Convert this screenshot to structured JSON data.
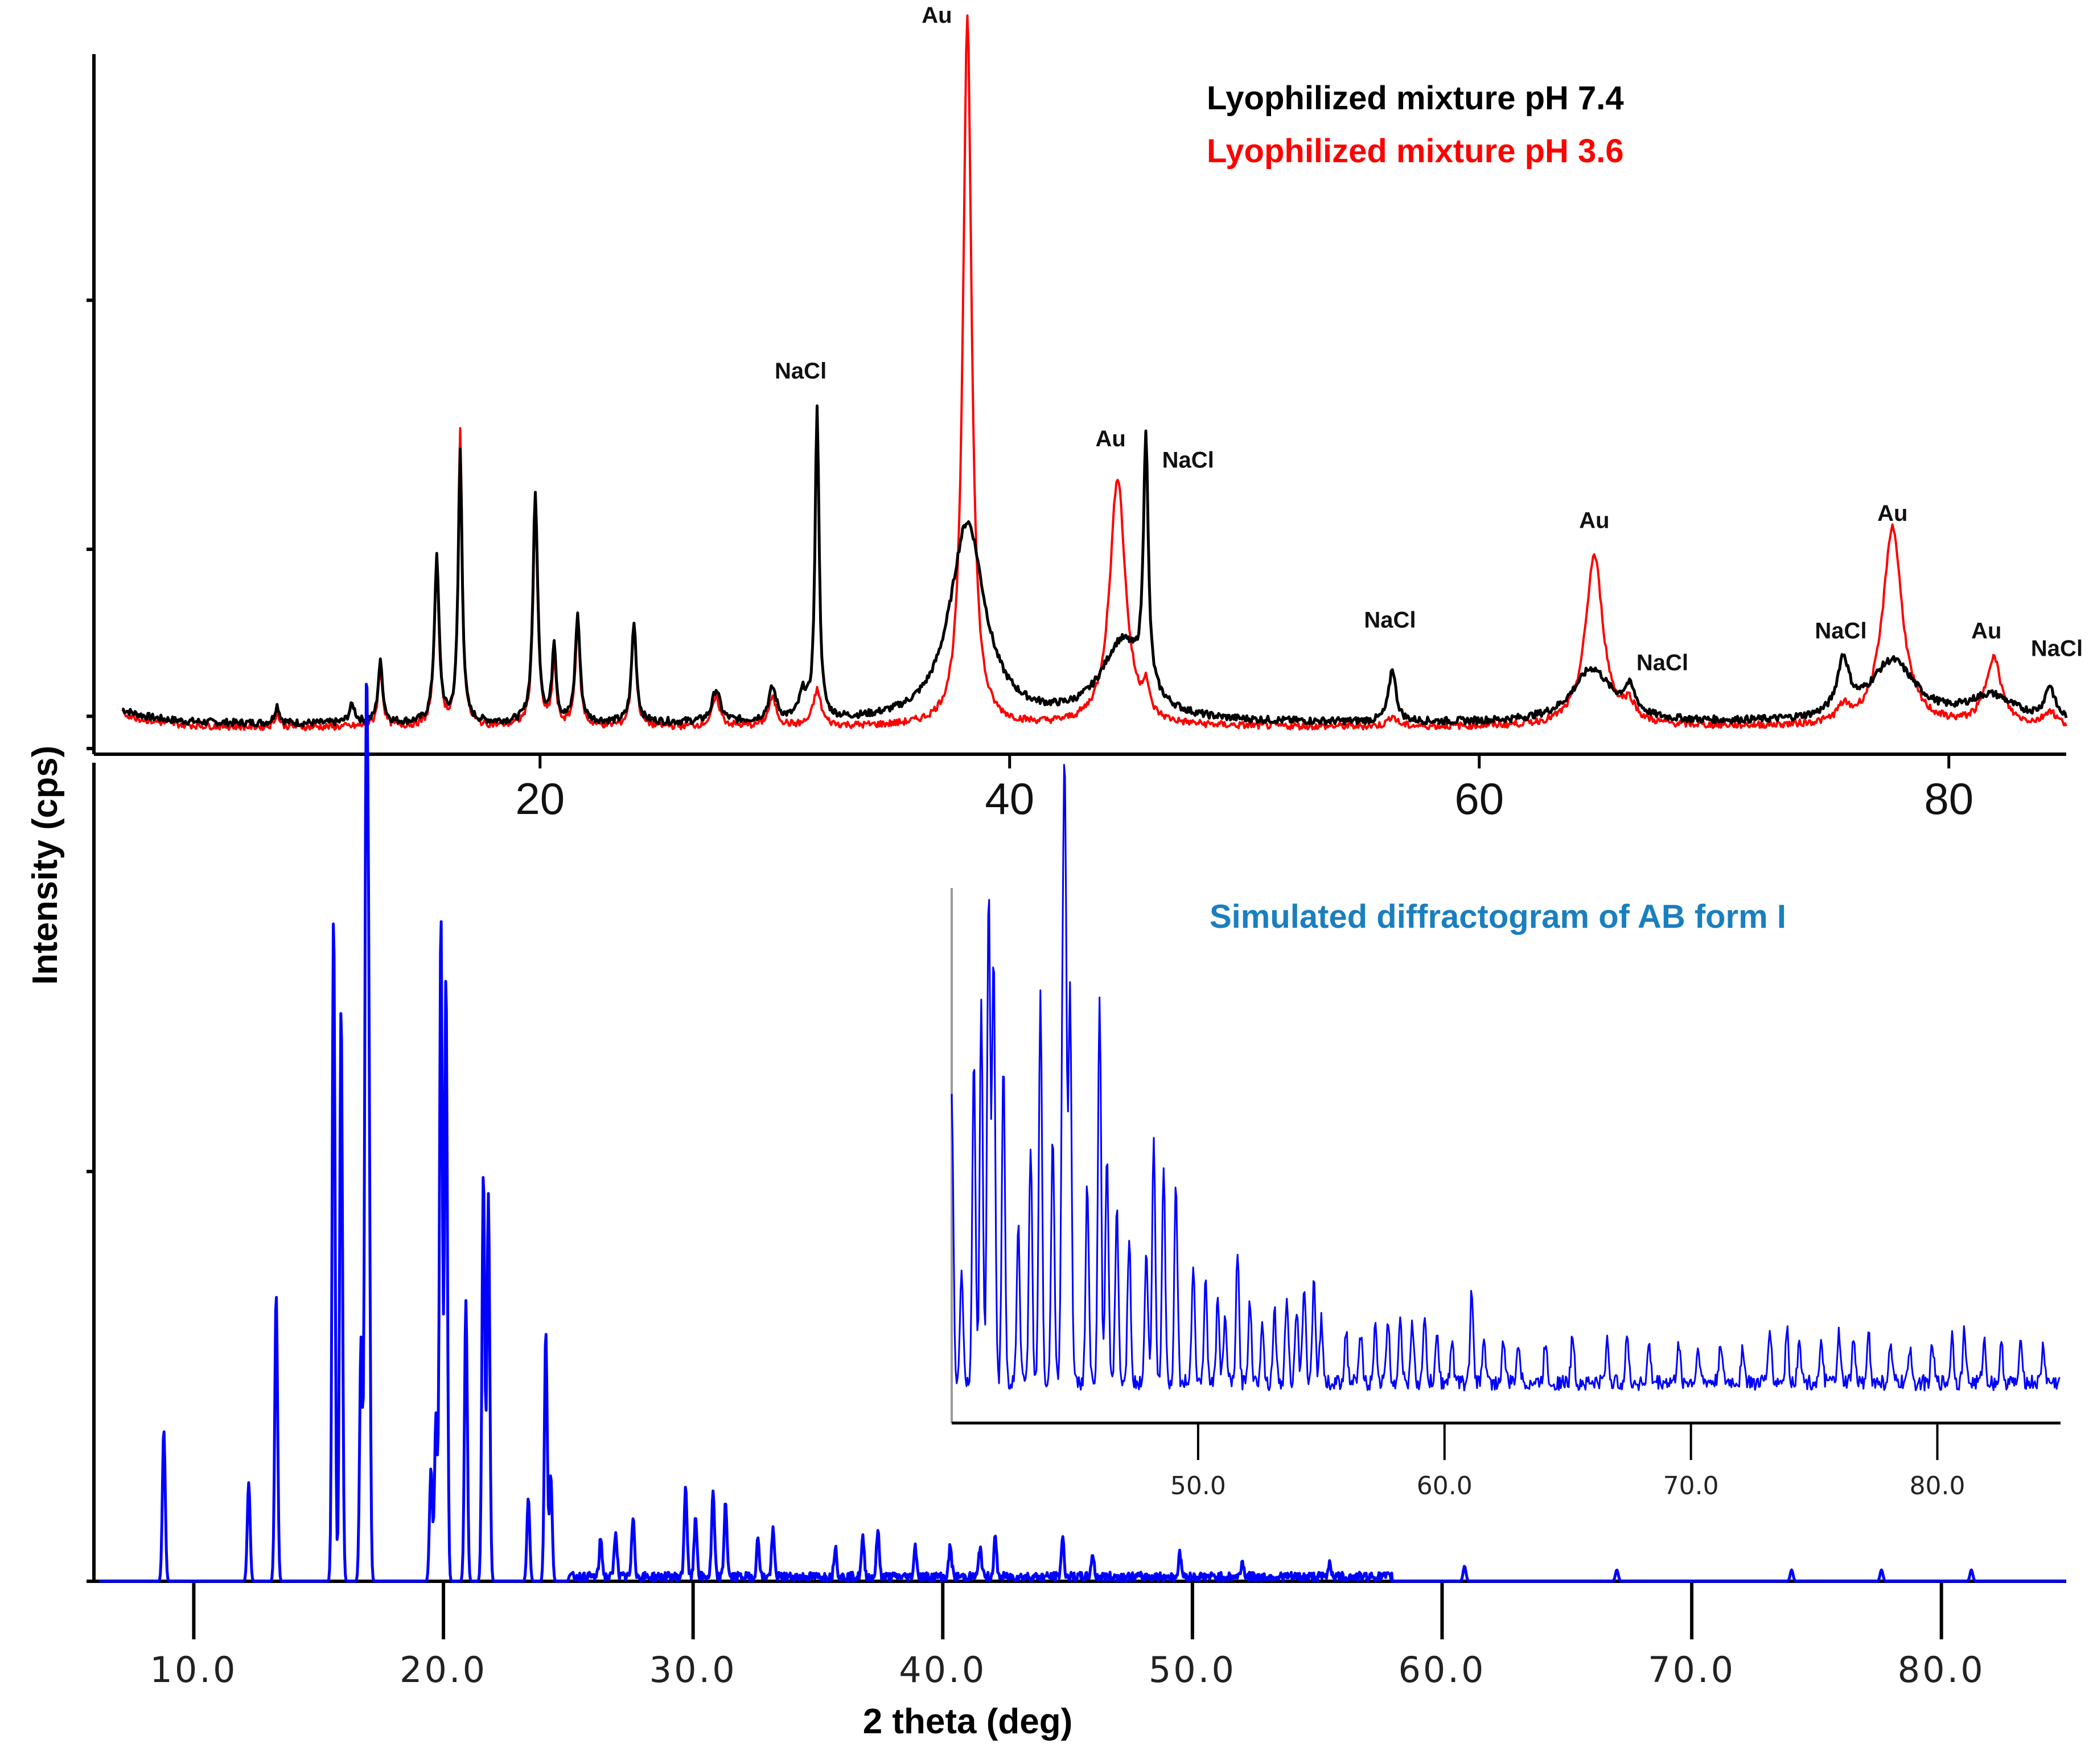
{
  "chart_data": [
    {
      "type": "line",
      "title": "",
      "xlabel": "",
      "ylabel": "Intensity (cps)",
      "xlim": [
        1,
        85
      ],
      "ylim": [
        0,
        1000
      ],
      "x_ticks": [
        20,
        40,
        60,
        80
      ],
      "x_tick_labels": [
        "20",
        "40",
        "60",
        "80"
      ],
      "y_ticks": [
        0,
        280,
        630
      ],
      "legend_position": "top-right",
      "series": [
        {
          "name": "Lyophilized mixture pH 7.4",
          "color": "#000000",
          "baseline": 35,
          "peaks": [
            [
              8.8,
              25,
              0.12
            ],
            [
              12.0,
              25,
              0.15
            ],
            [
              13.2,
              85,
              0.12
            ],
            [
              15.6,
              230,
              0.12
            ],
            [
              16.6,
              380,
              0.1
            ],
            [
              19.8,
              320,
              0.12
            ],
            [
              20.6,
              110,
              0.1
            ],
            [
              21.6,
              150,
              0.12
            ],
            [
              24.0,
              140,
              0.12
            ],
            [
              27.5,
              45,
              0.2
            ],
            [
              29.9,
              45,
              0.2
            ],
            [
              31.2,
              35,
              0.2
            ],
            [
              31.8,
              440,
              0.1
            ],
            [
              38.2,
              280,
              0.9
            ],
            [
              44.8,
              110,
              1.1
            ],
            [
              45.8,
              350,
              0.12
            ],
            [
              56.3,
              75,
              0.18
            ],
            [
              64.8,
              75,
              1.0
            ],
            [
              66.4,
              35,
              0.3
            ],
            [
              75.5,
              75,
              0.3
            ],
            [
              77.6,
              85,
              1.2
            ],
            [
              81.8,
              35,
              1.2
            ],
            [
              84.3,
              45,
              0.25
            ]
          ]
        },
        {
          "name": "Lyophilized mixture pH 3.6",
          "color": "#ff0000",
          "baseline": 30,
          "peaks": [
            [
              8.8,
              20,
              0.12
            ],
            [
              13.2,
              80,
              0.12
            ],
            [
              15.6,
              220,
              0.12
            ],
            [
              16.6,
              420,
              0.1
            ],
            [
              19.8,
              300,
              0.12
            ],
            [
              20.6,
              90,
              0.1
            ],
            [
              21.6,
              140,
              0.12
            ],
            [
              24.0,
              140,
              0.12
            ],
            [
              27.5,
              40,
              0.2
            ],
            [
              29.9,
              40,
              0.2
            ],
            [
              31.8,
              50,
              0.2
            ],
            [
              38.2,
              1000,
              0.22
            ],
            [
              44.6,
              350,
              0.4
            ],
            [
              45.8,
              40,
              0.15
            ],
            [
              56.3,
              15,
              0.2
            ],
            [
              64.9,
              240,
              0.45
            ],
            [
              66.4,
              25,
              0.3
            ],
            [
              75.5,
              20,
              0.3
            ],
            [
              77.6,
              280,
              0.5
            ],
            [
              81.9,
              95,
              0.4
            ],
            [
              84.3,
              20,
              0.3
            ]
          ]
        }
      ],
      "annotations": [
        {
          "text": "Au",
          "x": 36.9,
          "y": 1020
        },
        {
          "text": "NaCl",
          "x": 31.1,
          "y": 520
        },
        {
          "text": "Au",
          "x": 44.3,
          "y": 425
        },
        {
          "text": "NaCl",
          "x": 47.6,
          "y": 395
        },
        {
          "text": "NaCl",
          "x": 56.2,
          "y": 170
        },
        {
          "text": "Au",
          "x": 64.9,
          "y": 310
        },
        {
          "text": "NaCl",
          "x": 67.8,
          "y": 110
        },
        {
          "text": "NaCl",
          "x": 75.4,
          "y": 155
        },
        {
          "text": "Au",
          "x": 77.6,
          "y": 320
        },
        {
          "text": "Au",
          "x": 81.6,
          "y": 155
        },
        {
          "text": "NaCl",
          "x": 84.6,
          "y": 130
        }
      ]
    },
    {
      "type": "line",
      "title": "Simulated diffractogram of AB form I",
      "xlabel": "2 theta (deg)",
      "ylabel": "",
      "xlim": [
        6,
        85
      ],
      "ylim": [
        0,
        100
      ],
      "x_ticks": [
        10,
        20,
        30,
        40,
        50,
        60,
        70,
        80
      ],
      "x_tick_labels": [
        "10.0",
        "20.0",
        "30.0",
        "40.0",
        "50.0",
        "60.0",
        "70.0",
        "80.0"
      ],
      "y_ticks": [
        0,
        54,
        114
      ],
      "series": [
        {
          "name": "Simulated diffractogram of AB form I",
          "color": "#0000ff",
          "peaks": [
            [
              8.8,
              20
            ],
            [
              12.2,
              13
            ],
            [
              13.3,
              38
            ],
            [
              15.6,
              88
            ],
            [
              15.9,
              76
            ],
            [
              16.7,
              32
            ],
            [
              16.9,
              100
            ],
            [
              17.0,
              70
            ],
            [
              19.5,
              15
            ],
            [
              19.7,
              22
            ],
            [
              19.9,
              88
            ],
            [
              20.1,
              80
            ],
            [
              20.9,
              37
            ],
            [
              21.6,
              54
            ],
            [
              21.8,
              51
            ],
            [
              23.4,
              11
            ],
            [
              24.1,
              33
            ],
            [
              24.3,
              14
            ],
            [
              26.3,
              5
            ],
            [
              26.9,
              6
            ],
            [
              27.6,
              8
            ],
            [
              29.7,
              12
            ],
            [
              30.1,
              8
            ],
            [
              30.8,
              11
            ],
            [
              31.3,
              10
            ],
            [
              32.6,
              5
            ],
            [
              33.2,
              6
            ],
            [
              35.7,
              4
            ],
            [
              36.8,
              5
            ],
            [
              37.4,
              6
            ],
            [
              38.9,
              4
            ],
            [
              40.3,
              4
            ],
            [
              41.5,
              4
            ],
            [
              42.1,
              5
            ],
            [
              44.8,
              5
            ],
            [
              46.0,
              3
            ],
            [
              49.5,
              3
            ],
            [
              52.0,
              2
            ],
            [
              55.5,
              2
            ],
            [
              60.9,
              2
            ],
            [
              67.0,
              1.5
            ],
            [
              74.0,
              1.5
            ],
            [
              77.6,
              1.5
            ],
            [
              81.2,
              1.5
            ]
          ]
        }
      ]
    },
    {
      "type": "line",
      "title": "",
      "xlabel": "",
      "ylabel": "",
      "xlim": [
        40,
        85
      ],
      "ylim": [
        0,
        100
      ],
      "x_ticks": [
        50,
        60,
        70,
        80
      ],
      "x_tick_labels": [
        "50.0",
        "60.0",
        "70.0",
        "80.0"
      ],
      "series": [
        {
          "name": "Simulated diffractogram of AB form I (inset)",
          "color": "#0000ff",
          "baseline": 6,
          "peaks": [
            [
              40.0,
              56
            ],
            [
              40.4,
              22
            ],
            [
              40.9,
              62
            ],
            [
              41.2,
              72
            ],
            [
              41.5,
              94
            ],
            [
              41.7,
              80
            ],
            [
              42.1,
              60
            ],
            [
              42.7,
              30
            ],
            [
              43.2,
              45
            ],
            [
              43.6,
              74
            ],
            [
              44.1,
              48
            ],
            [
              44.5,
              56
            ],
            [
              44.6,
              99
            ],
            [
              44.8,
              76
            ],
            [
              45.5,
              38
            ],
            [
              46.0,
              72
            ],
            [
              46.3,
              43
            ],
            [
              46.7,
              33
            ],
            [
              47.2,
              28
            ],
            [
              47.9,
              25
            ],
            [
              48.2,
              46
            ],
            [
              48.6,
              42
            ],
            [
              49.1,
              38
            ],
            [
              49.8,
              23
            ],
            [
              50.3,
              19
            ],
            [
              50.8,
              16
            ],
            [
              51.1,
              12
            ],
            [
              51.6,
              24
            ],
            [
              52.1,
              16
            ],
            [
              52.6,
              12
            ],
            [
              53.1,
              14
            ],
            [
              53.6,
              17
            ],
            [
              54.0,
              13
            ],
            [
              54.3,
              19
            ],
            [
              54.7,
              20
            ],
            [
              55.0,
              12
            ],
            [
              56.0,
              10
            ],
            [
              56.6,
              9
            ],
            [
              57.2,
              11
            ],
            [
              57.7,
              12
            ],
            [
              58.2,
              13
            ],
            [
              58.7,
              11
            ],
            [
              59.2,
              12
            ],
            [
              59.7,
              9
            ],
            [
              60.3,
              8
            ],
            [
              61.1,
              17
            ],
            [
              61.6,
              9
            ],
            [
              62.4,
              8
            ],
            [
              63.0,
              8
            ],
            [
              64.1,
              8
            ],
            [
              65.2,
              9
            ],
            [
              66.6,
              8
            ],
            [
              67.4,
              9
            ],
            [
              68.3,
              7
            ],
            [
              69.5,
              8
            ],
            [
              70.3,
              7
            ],
            [
              71.2,
              8
            ],
            [
              72.1,
              7
            ],
            [
              73.2,
              11
            ],
            [
              73.9,
              10
            ],
            [
              74.4,
              9
            ],
            [
              75.3,
              7
            ],
            [
              76.0,
              9
            ],
            [
              76.6,
              8
            ],
            [
              77.2,
              10
            ],
            [
              78.1,
              7
            ],
            [
              78.9,
              7
            ],
            [
              79.8,
              7
            ],
            [
              80.6,
              9
            ],
            [
              81.1,
              10
            ],
            [
              81.9,
              8
            ],
            [
              82.6,
              7
            ],
            [
              83.4,
              8
            ],
            [
              84.3,
              7
            ]
          ]
        }
      ]
    }
  ]
}
